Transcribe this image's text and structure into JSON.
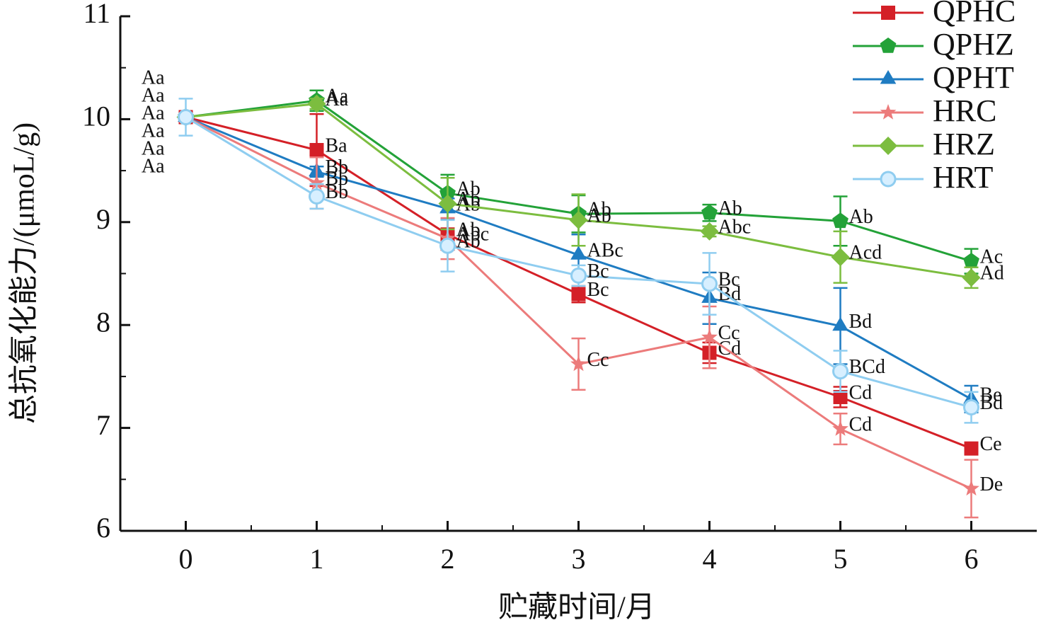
{
  "chart_data": {
    "type": "line",
    "x_label": "贮藏时间/月",
    "y_label": "总抗氧化能力/(μmoL/g)",
    "x": [
      0,
      1,
      2,
      3,
      4,
      5,
      6
    ],
    "xlim": [
      -0.5,
      6.5
    ],
    "xticks": [
      0,
      1,
      2,
      3,
      4,
      5,
      6
    ],
    "ylim": [
      6,
      11
    ],
    "yticks": [
      6,
      7,
      8,
      9,
      10,
      11
    ],
    "legend": "top-right",
    "series": [
      {
        "name": "QPHC",
        "color": "#d42027",
        "marker": "square",
        "values": [
          10.02,
          9.7,
          8.88,
          8.3,
          7.73,
          7.3,
          6.8
        ],
        "errors": [
          0.02,
          0.35,
          0.15,
          0.08,
          0.1,
          0.1,
          0.03
        ],
        "letters": [
          "Aa",
          "Ba",
          "Ab",
          "Bc",
          "Cd",
          "Cd",
          "Ce"
        ]
      },
      {
        "name": "QPHZ",
        "color": "#23a238",
        "marker": "pentagon",
        "values": [
          10.02,
          10.18,
          9.28,
          9.08,
          9.09,
          9.01,
          8.62
        ],
        "errors": [
          0.02,
          0.1,
          0.18,
          0.18,
          0.08,
          0.24,
          0.12
        ],
        "letters": [
          "Aa",
          "Aa",
          "Ab",
          "Ab",
          "Ab",
          "Ab",
          "Ac"
        ]
      },
      {
        "name": "QPHT",
        "color": "#1f7cc2",
        "marker": "triangle",
        "values": [
          10.02,
          9.49,
          9.13,
          8.68,
          8.26,
          7.99,
          7.28
        ],
        "errors": [
          0.02,
          0.05,
          0.1,
          0.2,
          0.25,
          0.37,
          0.13
        ],
        "letters": [
          "Aa",
          "Bb",
          "Ab",
          "ABc",
          "Bd",
          "Bd",
          "Be"
        ]
      },
      {
        "name": "HRC",
        "color": "#ec7b7b",
        "marker": "star",
        "values": [
          10.02,
          9.38,
          8.84,
          7.62,
          7.88,
          6.99,
          6.41
        ],
        "errors": [
          0.02,
          0.25,
          0.2,
          0.25,
          0.3,
          0.15,
          0.28
        ],
        "letters": [
          "Aa",
          "Bb",
          "Abc",
          "Cc",
          "Cc",
          "Cd",
          "De"
        ]
      },
      {
        "name": "HRZ",
        "color": "#7cbd3f",
        "marker": "diamond",
        "values": [
          10.02,
          10.15,
          9.18,
          9.02,
          8.91,
          8.66,
          8.46
        ],
        "errors": [
          0.02,
          0.05,
          0.25,
          0.25,
          0.05,
          0.25,
          0.1
        ],
        "letters": [
          "Aa",
          "Aa",
          "Ab",
          "Ab",
          "Abc",
          "Acd",
          "Ad"
        ]
      },
      {
        "name": "HRT",
        "color": "#8fcdf0",
        "marker": "circle",
        "values": [
          10.02,
          9.25,
          8.77,
          8.48,
          8.4,
          7.55,
          7.2
        ],
        "errors": [
          0.18,
          0.12,
          0.25,
          0.1,
          0.3,
          0.2,
          0.15
        ],
        "letters": [
          "Aa",
          "Bb",
          "Ab",
          "Bc",
          "Bc",
          "BCd",
          "Bd"
        ]
      }
    ]
  }
}
